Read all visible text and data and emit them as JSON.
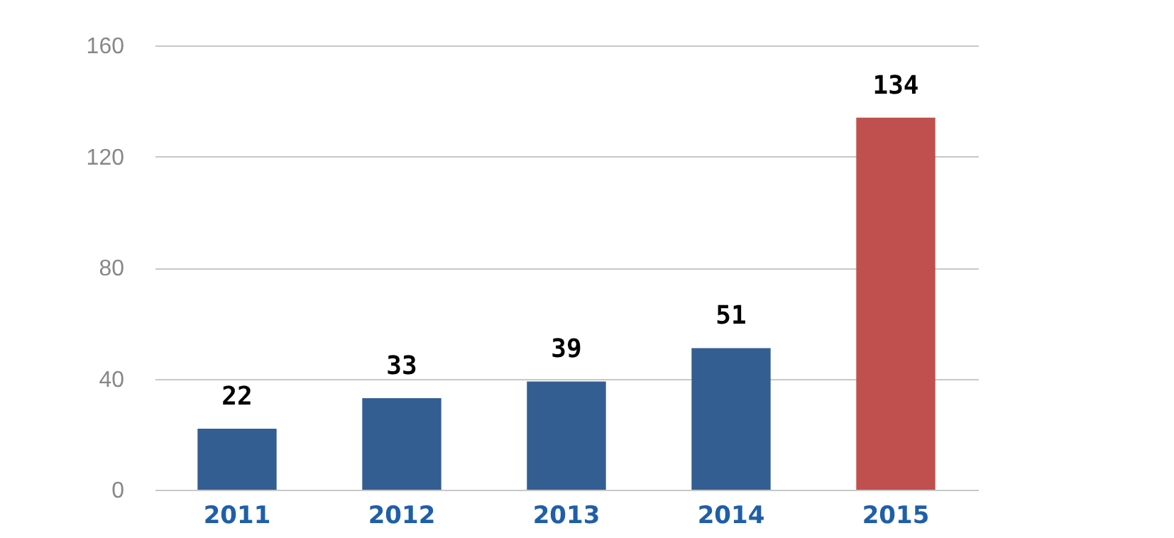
{
  "chart_data": {
    "type": "bar",
    "categories": [
      "2011",
      "2012",
      "2013",
      "2014",
      "2015"
    ],
    "values": [
      22,
      33,
      39,
      51,
      134
    ],
    "colors": [
      "#335e92",
      "#335e92",
      "#335e92",
      "#335e92",
      "#c0504d"
    ],
    "ylim": [
      0,
      160
    ],
    "yticks": [
      0,
      40,
      80,
      120,
      160
    ],
    "grid": "y",
    "data_labels": true
  }
}
